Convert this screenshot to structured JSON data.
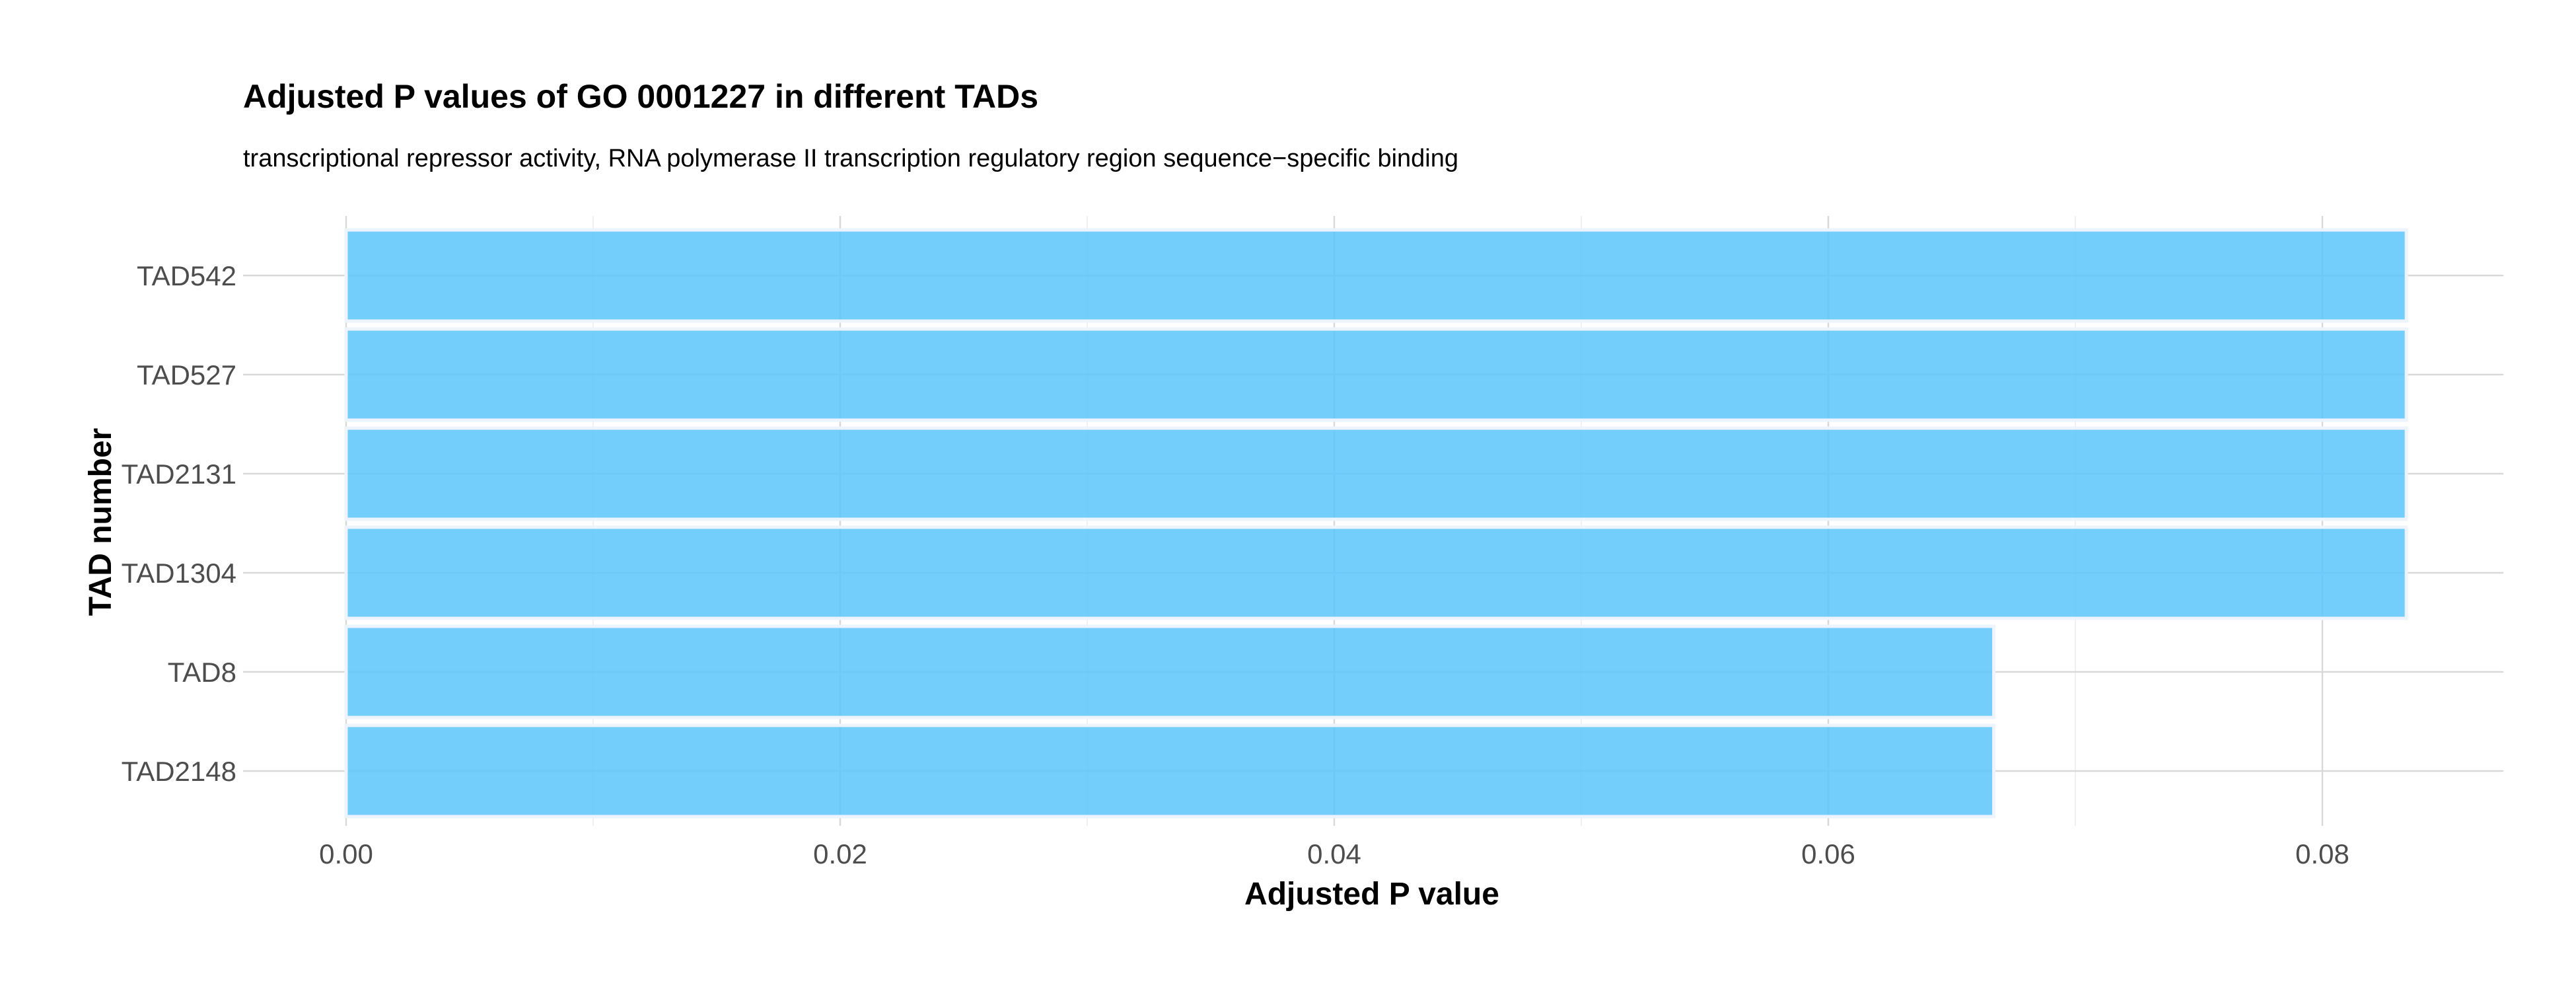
{
  "chart_data": {
    "type": "bar",
    "orientation": "horizontal",
    "title": "Adjusted P values of GO 0001227 in different TADs",
    "subtitle": "transcriptional repressor activity, RNA polymerase II transcription regulatory region sequence−specific binding",
    "xlabel": "Adjusted P value",
    "ylabel": "TAD number",
    "categories": [
      "TAD542",
      "TAD527",
      "TAD2131",
      "TAD1304",
      "TAD8",
      "TAD2148"
    ],
    "values": [
      0.0834,
      0.0834,
      0.0834,
      0.0834,
      0.0667,
      0.0667
    ],
    "xlim": [
      0,
      0.0875
    ],
    "xticks": [
      0.0,
      0.02,
      0.04,
      0.06,
      0.08
    ],
    "xtick_labels": [
      "0.00",
      "0.02",
      "0.04",
      "0.06",
      "0.08"
    ],
    "grid": true,
    "legend": "none",
    "bar_color": "#5bc6fb"
  }
}
